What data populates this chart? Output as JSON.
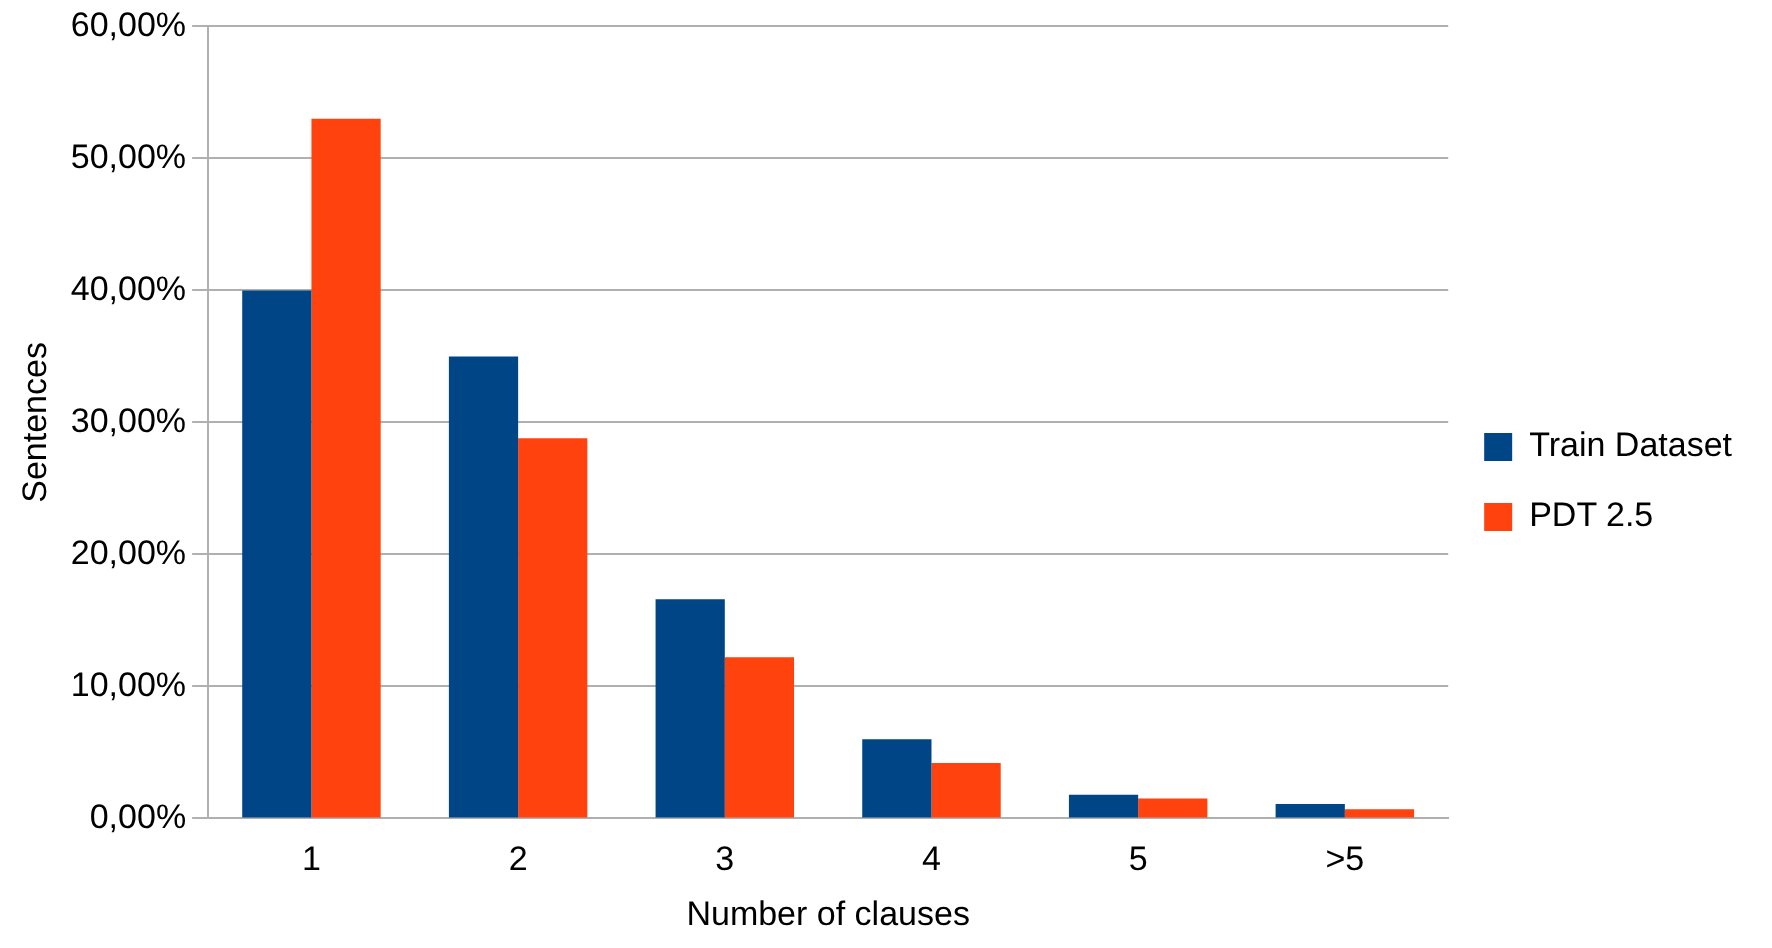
{
  "chart_data": {
    "type": "bar",
    "xlabel": "Number of clauses",
    "ylabel": "Sentences",
    "categories": [
      "1",
      "2",
      "3",
      "4",
      "5",
      ">5"
    ],
    "series": [
      {
        "name": "Train Dataset",
        "color": "#004586",
        "values": [
          40.0,
          35.0,
          16.6,
          6.0,
          1.8,
          1.1
        ]
      },
      {
        "name": "PDT 2.5",
        "color": "#ff420e",
        "values": [
          53.0,
          28.8,
          12.2,
          4.2,
          1.5,
          0.7
        ]
      }
    ],
    "ylim": [
      0,
      60
    ],
    "yticks": [
      {
        "value": 0,
        "label": "0,00%"
      },
      {
        "value": 10,
        "label": "10,00%"
      },
      {
        "value": 20,
        "label": "20,00%"
      },
      {
        "value": 30,
        "label": "30,00%"
      },
      {
        "value": 40,
        "label": "40,00%"
      },
      {
        "value": 50,
        "label": "50,00%"
      },
      {
        "value": 60,
        "label": "60,00%"
      }
    ],
    "grid": "y",
    "legend": "right"
  }
}
